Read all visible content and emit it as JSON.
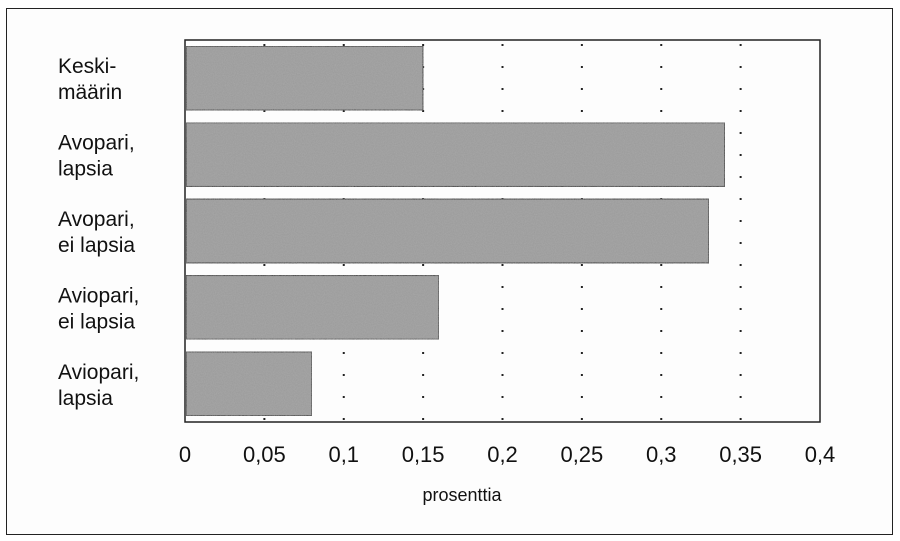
{
  "chart_data": {
    "type": "bar",
    "orientation": "horizontal",
    "categories": [
      [
        "Keski-",
        "määrin"
      ],
      [
        "Avopari,",
        "lapsia"
      ],
      [
        "Avopari,",
        "ei lapsia"
      ],
      [
        "Aviopari,",
        "ei lapsia"
      ],
      [
        "Aviopari,",
        "lapsia"
      ]
    ],
    "values": [
      0.15,
      0.34,
      0.33,
      0.16,
      0.08
    ],
    "xlim": [
      0,
      0.4
    ],
    "xticks": [
      0,
      0.05,
      0.1,
      0.15,
      0.2,
      0.25,
      0.3,
      0.35,
      0.4
    ],
    "xtick_labels": [
      "0",
      "0,05",
      "0,1",
      "0,15",
      "0,2",
      "0,25",
      "0,3",
      "0,35",
      "0,4"
    ],
    "xlabel": "prosenttia",
    "grid": "vertical-dotted",
    "colors": {
      "bar_fill": "#9a9a9a",
      "bar_edge": "#222222",
      "grid": "#222222"
    }
  }
}
